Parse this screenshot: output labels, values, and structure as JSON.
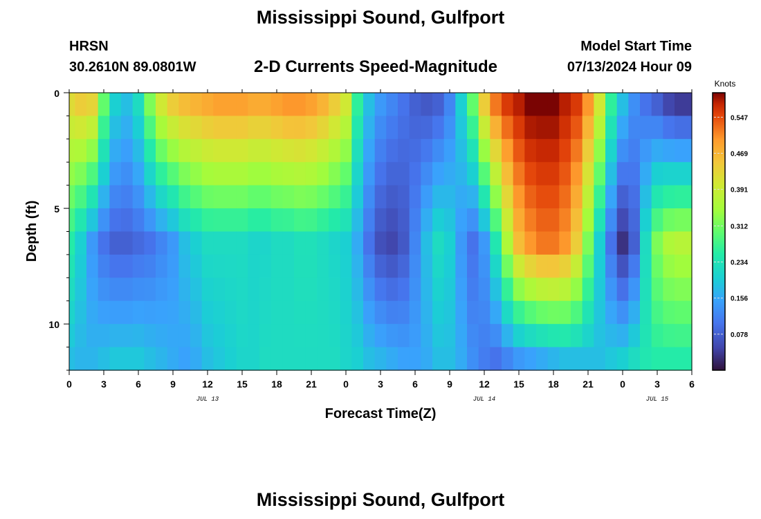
{
  "header": {
    "title": "Mississippi Sound, Gulfport",
    "station": "HRSN",
    "coords": "30.2610N  89.0801W",
    "subtitle": "2-D Currents Speed-Magnitude",
    "model_label": "Model Start Time",
    "model_time": "07/13/2024 Hour 09"
  },
  "footer": {
    "title": "Mississippi Sound, Gulfport"
  },
  "chart_data": {
    "type": "heatmap",
    "xlabel": "Forecast Time(Z)",
    "ylabel": "Depth (ft)",
    "x_hours": [
      0,
      54
    ],
    "x_ticks": [
      {
        "h": 0,
        "label": "0"
      },
      {
        "h": 3,
        "label": "3"
      },
      {
        "h": 6,
        "label": "6"
      },
      {
        "h": 9,
        "label": "9"
      },
      {
        "h": 12,
        "label": "12"
      },
      {
        "h": 15,
        "label": "15"
      },
      {
        "h": 18,
        "label": "18"
      },
      {
        "h": 21,
        "label": "21"
      },
      {
        "h": 24,
        "label": "0"
      },
      {
        "h": 27,
        "label": "3"
      },
      {
        "h": 30,
        "label": "6"
      },
      {
        "h": 33,
        "label": "9"
      },
      {
        "h": 36,
        "label": "12"
      },
      {
        "h": 39,
        "label": "15"
      },
      {
        "h": 42,
        "label": "18"
      },
      {
        "h": 45,
        "label": "21"
      },
      {
        "h": 48,
        "label": "0"
      },
      {
        "h": 51,
        "label": "3"
      },
      {
        "h": 54,
        "label": "6"
      }
    ],
    "date_labels": [
      {
        "h": 12,
        "label": "JUL 13"
      },
      {
        "h": 36,
        "label": "JUL 14"
      },
      {
        "h": 51,
        "label": "JUL 15"
      }
    ],
    "ylim": [
      0,
      12
    ],
    "y_ticks": [
      {
        "v": 0,
        "label": "0"
      },
      {
        "v": 5,
        "label": "5"
      },
      {
        "v": 10,
        "label": "10"
      }
    ],
    "depth_levels": [
      0.5,
      1.5,
      2.5,
      3.5,
      4.5,
      5.5,
      6.5,
      7.5,
      8.5,
      9.5,
      10.5,
      11.5
    ],
    "colorbar": {
      "unit": "Knots",
      "range": [
        0.0,
        0.6
      ],
      "ticks": [
        "0.547",
        "0.469",
        "0.391",
        "0.312",
        "0.234",
        "0.156",
        "0.078"
      ],
      "tick_values": [
        0.547,
        0.469,
        0.391,
        0.312,
        0.234,
        0.156,
        0.078
      ]
    },
    "profile_hours": [
      0,
      1,
      2,
      3,
      4,
      5,
      6,
      7,
      8,
      9,
      10,
      11,
      12,
      13,
      14,
      15,
      16,
      17,
      18,
      19,
      20,
      21,
      22,
      23,
      24,
      25,
      26,
      27,
      28,
      29,
      30,
      31,
      32,
      33,
      34,
      35,
      36,
      37,
      38,
      39,
      40,
      41,
      42,
      43,
      44,
      45,
      46,
      47,
      48,
      49,
      50,
      51,
      52,
      53,
      54
    ],
    "surface_speed": [
      0.42,
      0.44,
      0.43,
      0.3,
      0.2,
      0.18,
      0.22,
      0.32,
      0.4,
      0.44,
      0.46,
      0.47,
      0.48,
      0.49,
      0.49,
      0.49,
      0.48,
      0.48,
      0.49,
      0.5,
      0.5,
      0.49,
      0.47,
      0.44,
      0.4,
      0.26,
      0.18,
      0.14,
      0.12,
      0.1,
      0.08,
      0.07,
      0.08,
      0.12,
      0.2,
      0.3,
      0.44,
      0.52,
      0.56,
      0.58,
      0.6,
      0.6,
      0.6,
      0.58,
      0.56,
      0.5,
      0.4,
      0.26,
      0.18,
      0.13,
      0.1,
      0.08,
      0.05,
      0.04,
      0.04
    ],
    "depth_factor": [
      1.0,
      1.0,
      0.95,
      0.88,
      0.78,
      0.65,
      0.55,
      0.5,
      0.52,
      0.45,
      0.4,
      0.35
    ],
    "near_bed_speed": [
      0.18,
      0.17,
      0.17,
      0.18,
      0.19,
      0.19,
      0.19,
      0.18,
      0.17,
      0.16,
      0.15,
      0.16,
      0.18,
      0.19,
      0.2,
      0.21,
      0.21,
      0.22,
      0.22,
      0.22,
      0.22,
      0.22,
      0.22,
      0.22,
      0.21,
      0.2,
      0.18,
      0.17,
      0.16,
      0.15,
      0.15,
      0.16,
      0.18,
      0.18,
      0.16,
      0.13,
      0.11,
      0.1,
      0.12,
      0.14,
      0.15,
      0.16,
      0.17,
      0.18,
      0.18,
      0.18,
      0.18,
      0.19,
      0.2,
      0.22,
      0.24,
      0.25,
      0.25,
      0.25,
      0.25
    ],
    "mid_depth_speed": [
      0.25,
      0.2,
      0.14,
      0.1,
      0.08,
      0.08,
      0.09,
      0.1,
      0.12,
      0.14,
      0.18,
      0.2,
      0.22,
      0.22,
      0.22,
      0.22,
      0.21,
      0.21,
      0.22,
      0.22,
      0.23,
      0.23,
      0.22,
      0.21,
      0.2,
      0.16,
      0.1,
      0.06,
      0.05,
      0.07,
      0.12,
      0.18,
      0.22,
      0.2,
      0.14,
      0.1,
      0.14,
      0.24,
      0.36,
      0.46,
      0.5,
      0.52,
      0.52,
      0.5,
      0.44,
      0.32,
      0.2,
      0.1,
      0.03,
      0.08,
      0.22,
      0.32,
      0.36,
      0.37,
      0.37
    ]
  }
}
